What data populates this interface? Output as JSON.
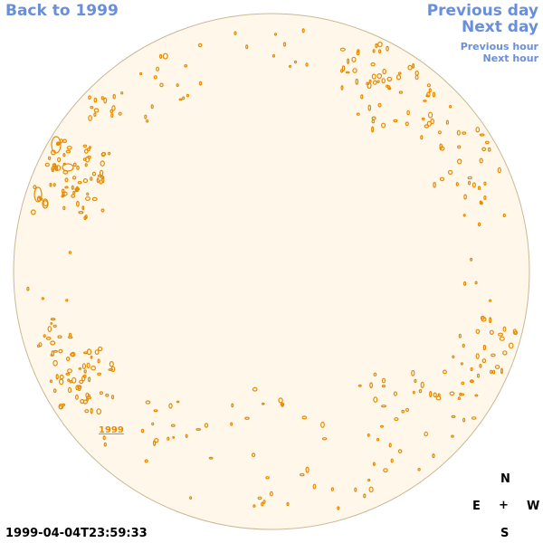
{
  "nav": {
    "back_label": "Back to 1999",
    "prev_day_label": "Previous day",
    "next_day_label": "Next day",
    "prev_hour_label": "Previous hour",
    "next_hour_label": "Next hour"
  },
  "compass": {
    "n": "N",
    "e": "E",
    "center": "+",
    "w": "W",
    "s": "S"
  },
  "timestamp": "1999-04-04T23:59:33",
  "region_label": "1999",
  "colors": {
    "disk_fill": "#fff8ea",
    "disk_stroke": "#c9b896",
    "contour": "#e68a00",
    "link": "#6a8fd8"
  }
}
